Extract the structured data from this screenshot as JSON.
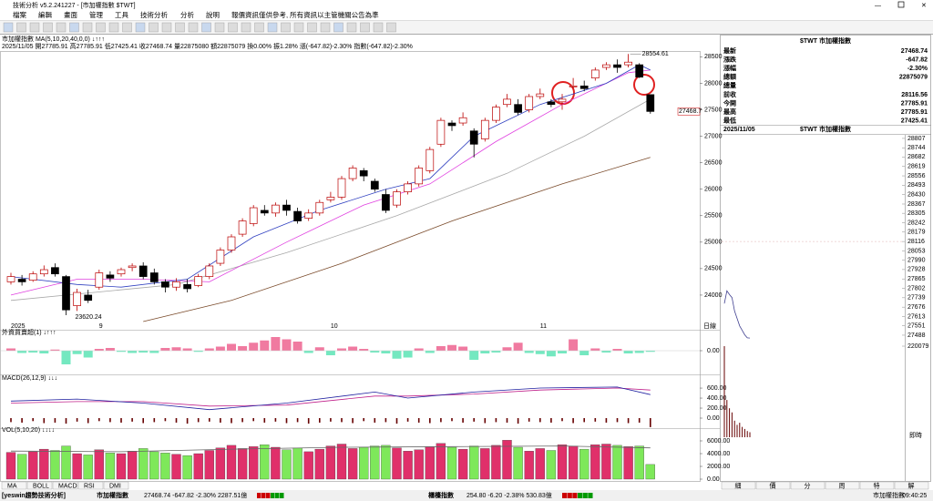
{
  "window": {
    "title": "技術分析 v5.2.241227 - [市加權指數 $TWT]"
  },
  "menu": [
    "檔案",
    "編輯",
    "畫面",
    "管理",
    "工具",
    "技術分析",
    "分析",
    "說明",
    "報價資訊僅供參考, 所有資訊以主管機關公告為準"
  ],
  "chart_header": {
    "title": "市加權指數 MA(5,10,20,40,0,0) ↓↑↑↑",
    "info": "2025/11/05 開27785.91 高27785.91 低27425.41 收27468.74 量22875080 額22875079 換0.00% 振1.28% 漲(-647.82)-2.30% 指數(-647.82)-2.30%"
  },
  "price_chart": {
    "ylim": [
      23500,
      28610
    ],
    "yticks": [
      24000,
      24500,
      25000,
      25500,
      26000,
      26500,
      27000,
      27500,
      28000,
      28500
    ],
    "open": [
      24250,
      24300,
      24280,
      24400,
      24520,
      24350,
      23800,
      24000,
      24150,
      24380,
      24400,
      24520,
      24550,
      24420,
      24250,
      24150,
      24200,
      24180,
      24350,
      24600,
      24850,
      25150,
      25350,
      25600,
      25550,
      25700,
      25580,
      25450,
      25550,
      25800,
      25850,
      26200,
      26350,
      26150,
      25900,
      25700,
      25950,
      26100,
      26350,
      26850,
      27250,
      27250,
      27100,
      26950,
      27300,
      27600,
      27600,
      27500,
      27750,
      27650,
      27650,
      27950,
      27950,
      28100,
      28300,
      28350,
      28350,
      28350,
      27785.91
    ],
    "high": [
      24420,
      24380,
      24450,
      24560,
      24600,
      24380,
      24120,
      24100,
      24480,
      24450,
      24520,
      24600,
      24620,
      24500,
      24300,
      24320,
      24300,
      24400,
      24600,
      24900,
      25150,
      25450,
      25700,
      25700,
      25750,
      25800,
      25650,
      25620,
      25800,
      25950,
      26250,
      26450,
      26400,
      26200,
      26000,
      26000,
      26150,
      26450,
      26800,
      27350,
      27300,
      27450,
      27150,
      27350,
      27600,
      27800,
      27700,
      27800,
      27900,
      27700,
      27800,
      28100,
      28050,
      28300,
      28400,
      28450,
      28554.61,
      28380,
      27785.91
    ],
    "low": [
      24200,
      24180,
      24250,
      24350,
      24350,
      23620.24,
      23700,
      23850,
      24100,
      24250,
      24350,
      24450,
      24300,
      24200,
      24050,
      24080,
      24050,
      24150,
      24300,
      24550,
      24800,
      25100,
      25300,
      25500,
      25480,
      25500,
      25350,
      25400,
      25500,
      25750,
      25800,
      26150,
      26150,
      25950,
      25550,
      25650,
      25900,
      26050,
      26300,
      26800,
      27100,
      27200,
      26600,
      26900,
      27250,
      27550,
      27400,
      27450,
      27700,
      27550,
      27500,
      27900,
      27850,
      28050,
      28250,
      28200,
      28300,
      28100,
      27425.41
    ],
    "close": [
      24350,
      24250,
      24400,
      24480,
      24400,
      23720,
      24050,
      23900,
      24420,
      24320,
      24480,
      24550,
      24350,
      24250,
      24150,
      24250,
      24120,
      24350,
      24550,
      24850,
      25100,
      25400,
      25650,
      25550,
      25700,
      25600,
      25400,
      25550,
      25750,
      25850,
      26200,
      26400,
      26250,
      26000,
      25600,
      25950,
      26100,
      26400,
      26750,
      27300,
      27200,
      27350,
      26850,
      27300,
      27550,
      27700,
      27450,
      27750,
      27800,
      27600,
      27700,
      27950,
      27900,
      28250,
      28350,
      28300,
      28400,
      28116.56,
      27468.74
    ],
    "ma": [
      {
        "color": "#7a4a2a",
        "idx": [
          12,
          20,
          30,
          40,
          50,
          58
        ],
        "values": [
          23500,
          23900,
          24600,
          25400,
          26100,
          26600
        ]
      },
      {
        "color": "#a8a8a8",
        "idx": [
          0,
          15,
          25,
          35,
          45,
          52,
          58
        ],
        "values": [
          23900,
          24200,
          24800,
          25500,
          26300,
          27000,
          27700
        ]
      },
      {
        "color": "#e040e0",
        "idx": [
          0,
          6,
          12,
          18,
          25,
          32,
          38,
          44,
          50,
          56,
          58
        ],
        "values": [
          24000,
          24300,
          24300,
          24250,
          25000,
          25700,
          26100,
          26900,
          27600,
          28200,
          28250
        ]
      },
      {
        "color": "#3040c0",
        "idx": [
          0,
          6,
          10,
          16,
          22,
          28,
          34,
          38,
          42,
          48,
          54,
          57,
          58
        ],
        "values": [
          24350,
          24200,
          24150,
          24300,
          25100,
          25600,
          26000,
          26200,
          27000,
          27600,
          28000,
          28350,
          28250
        ]
      }
    ],
    "high_label": "28554.61",
    "low_label": "23620.24",
    "last_label": "27468.7",
    "x_labels": {
      "idx": [
        0,
        8,
        29,
        48
      ],
      "labels": [
        "2025",
        "9",
        "10",
        "11"
      ]
    },
    "period": "日線"
  },
  "foreign": {
    "title": "外資買賣超(1) ↓↑↑↑",
    "ylim": [
      -100,
      60
    ],
    "yticks": [
      {
        "value": 0,
        "label": "0.00"
      }
    ],
    "values": [
      10,
      -10,
      -8,
      -12,
      5,
      -60,
      -15,
      -30,
      8,
      12,
      -5,
      -10,
      -8,
      -10,
      12,
      15,
      10,
      -5,
      10,
      18,
      30,
      20,
      35,
      45,
      60,
      50,
      40,
      -10,
      15,
      -20,
      10,
      18,
      8,
      -8,
      -12,
      -35,
      -30,
      10,
      -10,
      20,
      25,
      18,
      -40,
      -12,
      -8,
      15,
      35,
      -10,
      -15,
      -25,
      -12,
      50,
      -20,
      10,
      -8,
      8,
      -12,
      -10,
      -5
    ]
  },
  "macd": {
    "title": "MACD(26,12,9) ↓↓↓",
    "ylim": [
      -200,
      710
    ],
    "yticks": [
      {
        "value": 600,
        "label": "600.00"
      },
      {
        "value": 400,
        "label": "400.00"
      },
      {
        "value": 200,
        "label": "200.00"
      },
      {
        "value": 0,
        "label": "0.00"
      }
    ],
    "dif": {
      "idx": [
        0,
        6,
        12,
        18,
        25,
        33,
        36,
        42,
        48,
        55,
        58
      ],
      "values": [
        340,
        380,
        300,
        170,
        300,
        520,
        400,
        520,
        600,
        620,
        470
      ]
    },
    "signal": {
      "idx": [
        0,
        6,
        12,
        18,
        25,
        33,
        36,
        42,
        48,
        55,
        58
      ],
      "values": [
        300,
        330,
        330,
        240,
        260,
        440,
        440,
        480,
        560,
        600,
        560
      ]
    },
    "osc": [
      -80,
      -90,
      -60,
      -100,
      -90,
      -110,
      -70,
      -100,
      -60,
      -80,
      -90,
      -70,
      -100,
      -80,
      -60,
      -90,
      -110,
      -80,
      -70,
      -90,
      -100,
      -80,
      -60,
      -90,
      -70,
      -100,
      -80,
      -110,
      -90,
      -70,
      -80,
      -100,
      -60,
      -90,
      -80,
      -110,
      -70,
      -90,
      -100,
      -80,
      -60,
      -90,
      -70,
      -100,
      -80,
      -90,
      -110,
      -70,
      -80,
      -90,
      -60,
      -100,
      -80,
      -70,
      -90,
      -80,
      -100,
      -90,
      -180
    ]
  },
  "volume": {
    "title": "VOL(5,10,20) ↓↓↓↓",
    "ylim": [
      0,
      7000
    ],
    "yticks": [
      {
        "value": 6000,
        "label": "6000.00"
      },
      {
        "value": 4000,
        "label": "4000.00"
      },
      {
        "value": 2000,
        "label": "2000.00"
      },
      {
        "value": 0,
        "label": "0.00"
      }
    ],
    "values": [
      4200,
      3900,
      4300,
      4700,
      4500,
      5200,
      4000,
      3800,
      4600,
      4100,
      4000,
      4400,
      4800,
      4300,
      4100,
      3900,
      3700,
      4000,
      4500,
      4900,
      5300,
      4800,
      5100,
      5400,
      5000,
      4600,
      4900,
      4300,
      4700,
      5200,
      5500,
      4800,
      5000,
      5200,
      5300,
      4900,
      4400,
      4600,
      5100,
      5600,
      5000,
      4700,
      5200,
      4800,
      5300,
      6100,
      5000,
      4400,
      4800,
      4500,
      5400,
      5200,
      4700,
      5400,
      5500,
      5300,
      5100,
      5200,
      2300
    ],
    "ma": {
      "idx": [
        0,
        10,
        20,
        30,
        40,
        50,
        58
      ],
      "values": [
        4400,
        4300,
        4700,
        5000,
        5100,
        5200,
        4900
      ]
    }
  },
  "tabs": [
    "MA",
    "BOLL",
    "MACD",
    "RSI",
    "DMI"
  ],
  "quote": {
    "header": "$TWT 市加權指數",
    "rows": [
      {
        "label": "最新",
        "value": "27468.74",
        "color": "#009900"
      },
      {
        "label": "漲跌",
        "value": "-647.82",
        "color": "#009900"
      },
      {
        "label": "漲幅",
        "value": "-2.30%",
        "color": "#009900"
      },
      {
        "label": "總額",
        "value": "22875079",
        "color": "#000000"
      },
      {
        "label": "總量"
      },
      {
        "label": "前收",
        "value": "28116.56",
        "color": "#000000"
      },
      {
        "label": "今開",
        "value": "27785.91",
        "color": "#009900"
      },
      {
        "label": "最高",
        "value": "27785.91",
        "color": "#009900"
      },
      {
        "label": "最低",
        "value": "27425.41",
        "color": "#009900"
      }
    ]
  },
  "intraday": {
    "date": "2025/11/05",
    "header": "$TWT 市加權指數",
    "ylim": [
      27445,
      28831
    ],
    "ref": 28116,
    "yticks": [
      28807,
      28744,
      28682,
      28619,
      28556,
      28493,
      28430,
      28367,
      28305,
      28242,
      28179,
      28116,
      28053,
      27990,
      27928,
      27865,
      27802,
      27739,
      27676,
      27613,
      27551,
      27488
    ],
    "prices": [
      27700,
      27785,
      27760,
      27740,
      27650,
      27600,
      27550,
      27520,
      27490,
      27470,
      27468.74
    ],
    "vol_ylim": [
      0,
      220079
    ],
    "vol_label": "220079",
    "volumes": [
      220079,
      90000,
      70000,
      60000,
      40000,
      30000,
      35000,
      25000,
      20000,
      15000,
      12000
    ],
    "mode": "即時"
  },
  "side_tabs": [
    "細",
    "價",
    "分",
    "周",
    "特",
    "解"
  ],
  "status": {
    "app": "[yeswin趨勢技術分析]",
    "idx1": "市加權指數",
    "idx1_quote": "27468.74 -647.82 -2.30% 2287.51億",
    "idx2": "櫃檯指數",
    "idx2_quote": "254.80 -6.20 -2.38% 530.83億",
    "right_name": "市加權指數",
    "time": "09:40:25"
  }
}
